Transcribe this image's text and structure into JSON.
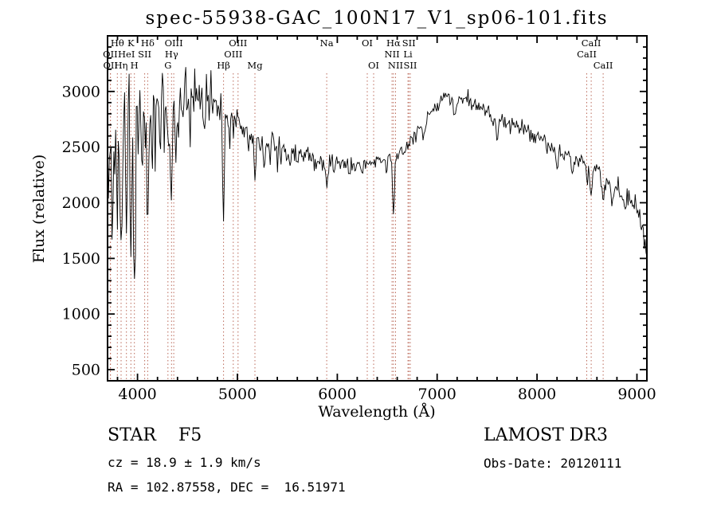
{
  "chart_data": {
    "type": "line",
    "title": "spec-55938-GAC_100N17_V1_sp06-101.fits",
    "xlabel": "Wavelength (Å)",
    "ylabel": "Flux (relative)",
    "xlim": [
      3700,
      9100
    ],
    "ylim": [
      400,
      3500
    ],
    "x_major_ticks": [
      4000,
      5000,
      6000,
      7000,
      8000,
      9000
    ],
    "x_minor_step": 200,
    "y_major_ticks": [
      500,
      1000,
      1500,
      2000,
      2500,
      3000
    ],
    "y_minor_step": 100,
    "grid": false,
    "legend": "none",
    "colors": {
      "spectrum": "#000000",
      "axis": "#000000",
      "marker_line": "#bb6a5a",
      "marker_label": "#8b2323",
      "background": "#ffffff"
    },
    "series_name": "flux",
    "continuum": [
      [
        3700,
        2500
      ],
      [
        3720,
        2760
      ],
      [
        3750,
        2850
      ],
      [
        3820,
        2870
      ],
      [
        3900,
        2900
      ],
      [
        4050,
        2910
      ],
      [
        4200,
        2930
      ],
      [
        4350,
        2945
      ],
      [
        4500,
        2980
      ],
      [
        4600,
        3000
      ],
      [
        4700,
        2960
      ],
      [
        4800,
        2890
      ],
      [
        4900,
        2810
      ],
      [
        5000,
        2745
      ],
      [
        5100,
        2680
      ],
      [
        5200,
        2610
      ],
      [
        5300,
        2545
      ],
      [
        5400,
        2490
      ],
      [
        5500,
        2445
      ],
      [
        5600,
        2415
      ],
      [
        5700,
        2400
      ],
      [
        5800,
        2385
      ],
      [
        5900,
        2365
      ],
      [
        6000,
        2350
      ],
      [
        6100,
        2340
      ],
      [
        6200,
        2340
      ],
      [
        6300,
        2350
      ],
      [
        6400,
        2370
      ],
      [
        6500,
        2395
      ],
      [
        6600,
        2425
      ],
      [
        6700,
        2505
      ],
      [
        6800,
        2625
      ],
      [
        6900,
        2755
      ],
      [
        7000,
        2875
      ],
      [
        7100,
        2945
      ],
      [
        7200,
        2950
      ],
      [
        7300,
        2920
      ],
      [
        7400,
        2875
      ],
      [
        7500,
        2825
      ],
      [
        7600,
        2765
      ],
      [
        7700,
        2725
      ],
      [
        7800,
        2685
      ],
      [
        7900,
        2645
      ],
      [
        8000,
        2585
      ],
      [
        8100,
        2535
      ],
      [
        8200,
        2485
      ],
      [
        8300,
        2435
      ],
      [
        8400,
        2385
      ],
      [
        8500,
        2335
      ],
      [
        8600,
        2275
      ],
      [
        8700,
        2225
      ],
      [
        8800,
        2135
      ],
      [
        8900,
        2065
      ],
      [
        8950,
        2025
      ],
      [
        9000,
        1985
      ],
      [
        9040,
        1855
      ],
      [
        9080,
        1660
      ],
      [
        9100,
        1560
      ]
    ],
    "absorption_features_format": "[center_wavelength, depth, sigma]",
    "absorption_features": [
      [
        3712,
        500,
        6
      ],
      [
        3734,
        850,
        7
      ],
      [
        3750,
        950,
        6
      ],
      [
        3771,
        700,
        6
      ],
      [
        3798,
        950,
        7
      ],
      [
        3820,
        550,
        6
      ],
      [
        3835,
        1280,
        8
      ],
      [
        3856,
        520,
        6
      ],
      [
        3889,
        1020,
        8
      ],
      [
        3934,
        1520,
        9
      ],
      [
        3969,
        1650,
        9
      ],
      [
        4010,
        420,
        7
      ],
      [
        4045,
        680,
        7
      ],
      [
        4077,
        520,
        7
      ],
      [
        4102,
        1220,
        9
      ],
      [
        4144,
        460,
        7
      ],
      [
        4180,
        360,
        7
      ],
      [
        4226,
        560,
        8
      ],
      [
        4271,
        360,
        7
      ],
      [
        4305,
        500,
        9
      ],
      [
        4340,
        760,
        9
      ],
      [
        4383,
        520,
        8
      ],
      [
        4405,
        360,
        7
      ],
      [
        4457,
        260,
        7
      ],
      [
        4528,
        300,
        7
      ],
      [
        4668,
        300,
        8
      ],
      [
        4861,
        900,
        9
      ],
      [
        4920,
        260,
        7
      ],
      [
        4957,
        210,
        7
      ],
      [
        5040,
        200,
        8
      ],
      [
        5110,
        200,
        8
      ],
      [
        5175,
        360,
        12
      ],
      [
        5230,
        180,
        8
      ],
      [
        5270,
        260,
        9
      ],
      [
        5328,
        180,
        8
      ],
      [
        5400,
        150,
        8
      ],
      [
        5530,
        120,
        8
      ],
      [
        5780,
        110,
        8
      ],
      [
        5893,
        290,
        10
      ],
      [
        6122,
        100,
        8
      ],
      [
        6250,
        120,
        8
      ],
      [
        6495,
        120,
        8
      ],
      [
        6563,
        560,
        8
      ],
      [
        6870,
        160,
        12
      ],
      [
        7180,
        130,
        15
      ],
      [
        7600,
        190,
        14
      ],
      [
        8200,
        150,
        12
      ],
      [
        8350,
        120,
        10
      ],
      [
        8498,
        180,
        8
      ],
      [
        8542,
        290,
        9
      ],
      [
        8662,
        290,
        9
      ],
      [
        8750,
        200,
        10
      ],
      [
        8880,
        160,
        10
      ]
    ],
    "noise_profile_format": "[wavelength, sigma]",
    "noise_profile": [
      [
        3700,
        200
      ],
      [
        3800,
        195
      ],
      [
        3900,
        185
      ],
      [
        4000,
        165
      ],
      [
        4200,
        145
      ],
      [
        4400,
        125
      ],
      [
        4600,
        110
      ],
      [
        4800,
        95
      ],
      [
        5000,
        78
      ],
      [
        5200,
        66
      ],
      [
        5400,
        56
      ],
      [
        5600,
        50
      ],
      [
        5800,
        46
      ],
      [
        6000,
        42
      ],
      [
        6300,
        38
      ],
      [
        6600,
        35
      ],
      [
        7000,
        32
      ],
      [
        7400,
        33
      ],
      [
        7800,
        36
      ],
      [
        8200,
        40
      ],
      [
        8600,
        48
      ],
      [
        9000,
        60
      ],
      [
        9100,
        80
      ]
    ],
    "noise_seed": 20120111,
    "sample_step": 9,
    "spectral_line_markers": [
      {
        "label": "Hθ",
        "wavelength": 3798.0,
        "row": 1
      },
      {
        "label": "K",
        "wavelength": 3933.7,
        "row": 1
      },
      {
        "label": "Hδ",
        "wavelength": 4101.7,
        "row": 1
      },
      {
        "label": "OIII",
        "wavelength": 4363.2,
        "row": 1
      },
      {
        "label": "OIII",
        "wavelength": 5006.8,
        "row": 1
      },
      {
        "label": "Na",
        "wavelength": 5894.0,
        "row": 1
      },
      {
        "label": "OI",
        "wavelength": 6300.2,
        "row": 1
      },
      {
        "label": "Hα",
        "wavelength": 6562.8,
        "row": 1
      },
      {
        "label": "SII",
        "wavelength": 6716.4,
        "row": 1
      },
      {
        "label": "CaII",
        "wavelength": 8542.1,
        "row": 1
      },
      {
        "label": "OII",
        "wavelength": 3727.1,
        "row": 2
      },
      {
        "label": "HeI",
        "wavelength": 3889.0,
        "row": 2
      },
      {
        "label": "SII",
        "wavelength": 4072.0,
        "row": 2
      },
      {
        "label": "Hγ",
        "wavelength": 4340.5,
        "row": 2
      },
      {
        "label": "OIII",
        "wavelength": 4958.9,
        "row": 2
      },
      {
        "label": "NII",
        "wavelength": 6548.0,
        "row": 2
      },
      {
        "label": "Li",
        "wavelength": 6707.8,
        "row": 2
      },
      {
        "label": "CaII",
        "wavelength": 8498.0,
        "row": 2
      },
      {
        "label": "OII",
        "wavelength": 3729.8,
        "row": 3
      },
      {
        "label": "Hη",
        "wavelength": 3835.4,
        "row": 3
      },
      {
        "label": "H",
        "wavelength": 3968.5,
        "row": 3
      },
      {
        "label": "G",
        "wavelength": 4305.0,
        "row": 3
      },
      {
        "label": "Hβ",
        "wavelength": 4861.3,
        "row": 3
      },
      {
        "label": "Mg",
        "wavelength": 5175.4,
        "row": 3
      },
      {
        "label": "OI",
        "wavelength": 6363.8,
        "row": 3
      },
      {
        "label": "NII",
        "wavelength": 6583.4,
        "row": 3
      },
      {
        "label": "SII",
        "wavelength": 6730.8,
        "row": 3
      },
      {
        "label": "CaII",
        "wavelength": 8662.1,
        "row": 3
      }
    ]
  },
  "annotations": {
    "class_label": "STAR    F5",
    "survey": "LAMOST DR3",
    "cz": "cz = 18.9 ± 1.9 km/s",
    "obs_date": "Obs-Date: 20120111",
    "ra_dec": "RA = 102.87558, DEC =  16.51971"
  }
}
